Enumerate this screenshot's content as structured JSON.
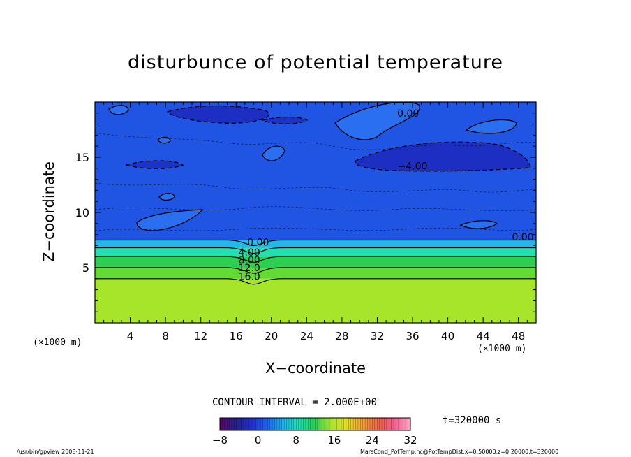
{
  "chart_data": {
    "type": "heatmap",
    "title": "disturbunce of potential temperature",
    "xlabel": "X−coordinate",
    "ylabel": "Z−coordinate",
    "x_unit_left": "(×1000 m)",
    "x_unit_right": "(×1000 m)",
    "xlim": [
      0,
      50
    ],
    "ylim": [
      0,
      20
    ],
    "x_ticks": [
      4,
      8,
      12,
      16,
      20,
      24,
      28,
      32,
      36,
      40,
      44,
      48
    ],
    "y_ticks": [
      5,
      10,
      15
    ],
    "grid": false,
    "contour_interval_text": "CONTOUR INTERVAL = 2.000E+00",
    "time_text": "t=320000 s",
    "colorbar": {
      "ticks": [
        -8,
        0,
        8,
        16,
        24,
        32
      ],
      "range": [
        -8,
        32
      ],
      "colors": [
        "#5a0a6a",
        "#23238c",
        "#1f2fd0",
        "#1e6aef",
        "#22b8ea",
        "#22e0b0",
        "#2ccf52",
        "#a6e52a",
        "#e8e02a",
        "#f2a23a",
        "#f0684a",
        "#f45a8a",
        "#ff9ec2"
      ]
    },
    "layers": [
      {
        "z_from": 0,
        "z_to": 4,
        "value": 17,
        "color": "#a6e52a"
      },
      {
        "z_from": 4,
        "z_to": 5,
        "value": 15,
        "color": "#62dc32"
      },
      {
        "z_from": 5,
        "z_to": 6,
        "value": 11,
        "color": "#2ccf52"
      },
      {
        "z_from": 6,
        "z_to": 6.8,
        "value": 7,
        "color": "#22e0b0"
      },
      {
        "z_from": 6.8,
        "z_to": 7.5,
        "value": 3,
        "color": "#22b8ea"
      },
      {
        "z_from": 7.5,
        "z_to": 20,
        "value": -1.5,
        "color": "#1f55e2"
      }
    ],
    "contour_labels": [
      {
        "x": 18.5,
        "z": 7.3,
        "text": "0.00"
      },
      {
        "x": 17.5,
        "z": 6.4,
        "text": "4.00"
      },
      {
        "x": 17.5,
        "z": 5.7,
        "text": "8.00"
      },
      {
        "x": 17.5,
        "z": 5.0,
        "text": "12.0"
      },
      {
        "x": 17.5,
        "z": 4.2,
        "text": "16.0"
      },
      {
        "x": 35.5,
        "z": 19.0,
        "text": "0.00"
      },
      {
        "x": 36.0,
        "z": 14.2,
        "text": "−4.00"
      },
      {
        "x": 48.5,
        "z": 7.8,
        "text": "0.00"
      }
    ]
  },
  "footer": {
    "left": "/usr/bin/gpview   2008-11-21",
    "right": "MarsCond_PotTemp.nc@PotTempDist,x=0:50000,z=0:20000,t=320000"
  }
}
